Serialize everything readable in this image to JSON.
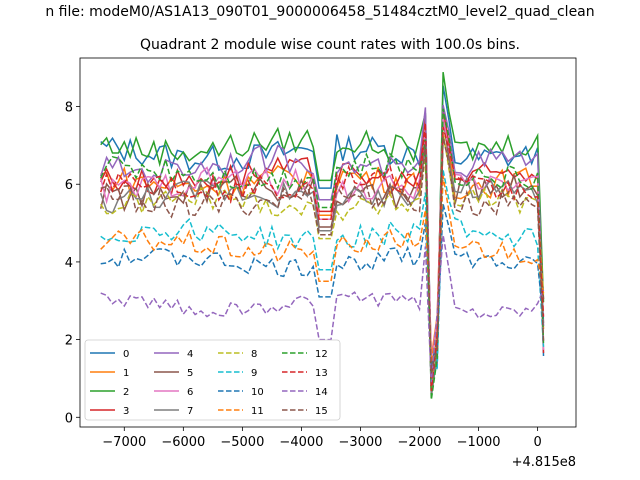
{
  "figure": {
    "suptitle": "n file: modeM0/AS1A13_090T01_9000006458_51484cztM0_level2_quad_clean"
  },
  "chart_data": {
    "type": "line",
    "title": "Quadrant 2 module wise count rates with 100.0s bins.",
    "xlabel": "",
    "ylabel": "",
    "x_offset_label": "+4.815e8",
    "x_range": [
      -7400,
      100
    ],
    "xlim": [
      -7750,
      650
    ],
    "ylim": [
      -0.25,
      9.25
    ],
    "x_ticks": [
      -7000,
      -6000,
      -5000,
      -4000,
      -3000,
      -2000,
      -1000,
      0
    ],
    "x_tick_labels": [
      "−7000",
      "−6000",
      "−5000",
      "−4000",
      "−3000",
      "−2000",
      "−1000",
      "0"
    ],
    "y_ticks": [
      0,
      2,
      4,
      6,
      8
    ],
    "y_tick_labels": [
      "0",
      "2",
      "4",
      "6",
      "8"
    ],
    "legend_position": "lower-left",
    "legend_columns": 4,
    "series": [
      {
        "name": "0",
        "color": "#1f77b4",
        "dash": "solid",
        "mean": 6.8,
        "amp": 0.35
      },
      {
        "name": "1",
        "color": "#ff7f0e",
        "dash": "solid",
        "mean": 6.1,
        "amp": 0.35
      },
      {
        "name": "2",
        "color": "#2ca02c",
        "dash": "solid",
        "mean": 7.0,
        "amp": 0.35
      },
      {
        "name": "3",
        "color": "#d62728",
        "dash": "solid",
        "mean": 6.2,
        "amp": 0.35
      },
      {
        "name": "4",
        "color": "#9467bd",
        "dash": "solid",
        "mean": 6.5,
        "amp": 0.35
      },
      {
        "name": "5",
        "color": "#8c564b",
        "dash": "solid",
        "mean": 5.8,
        "amp": 0.35
      },
      {
        "name": "6",
        "color": "#e377c2",
        "dash": "solid",
        "mean": 6.0,
        "amp": 0.35
      },
      {
        "name": "7",
        "color": "#7f7f7f",
        "dash": "solid",
        "mean": 5.7,
        "amp": 0.35
      },
      {
        "name": "8",
        "color": "#bcbd22",
        "dash": "dashed",
        "mean": 5.5,
        "amp": 0.3
      },
      {
        "name": "9",
        "color": "#17becf",
        "dash": "dashed",
        "mean": 4.7,
        "amp": 0.3
      },
      {
        "name": "10",
        "color": "#1f77b4",
        "dash": "dashed",
        "mean": 4.0,
        "amp": 0.25
      },
      {
        "name": "11",
        "color": "#ff7f0e",
        "dash": "dashed",
        "mean": 4.4,
        "amp": 0.3
      },
      {
        "name": "12",
        "color": "#2ca02c",
        "dash": "dashed",
        "mean": 6.3,
        "amp": 0.35
      },
      {
        "name": "13",
        "color": "#d62728",
        "dash": "dashed",
        "mean": 6.0,
        "amp": 0.35
      },
      {
        "name": "14",
        "color": "#9467bd",
        "dash": "dashed",
        "mean": 2.9,
        "amp": 0.2
      },
      {
        "name": "15",
        "color": "#8c564b",
        "dash": "dashed",
        "mean": 5.6,
        "amp": 0.35
      }
    ]
  }
}
